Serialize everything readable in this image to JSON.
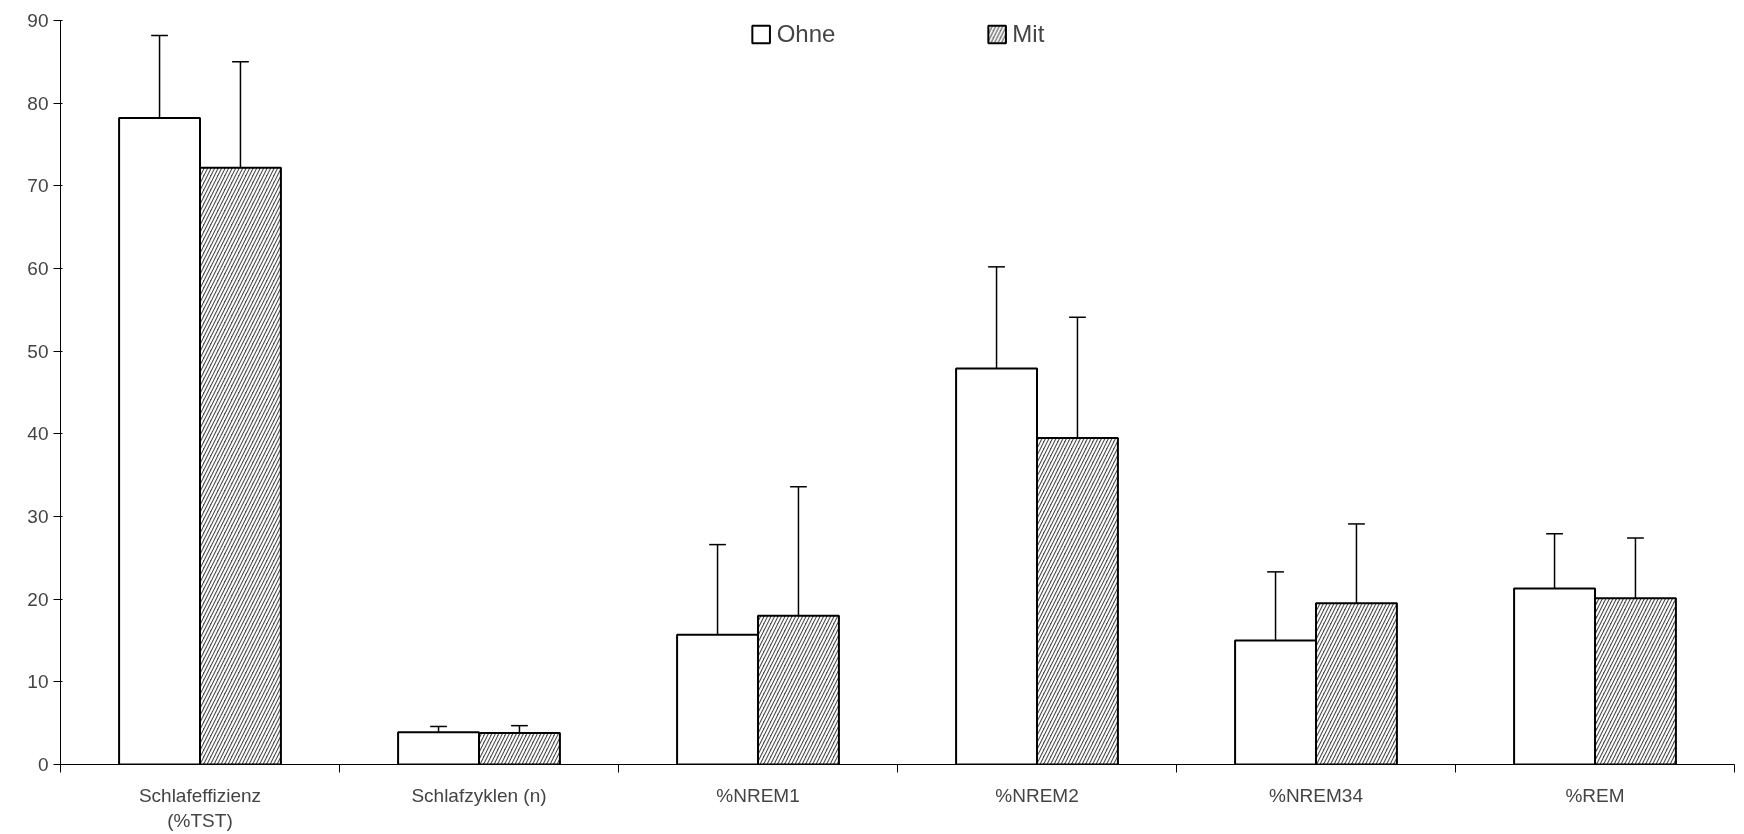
{
  "chart_data": {
    "type": "bar",
    "categories": [
      "Schlafeffizienz\n(%TST)",
      "Schlafzyklen (n)",
      "%NREM1",
      "%NREM2",
      "%NREM34",
      "%REM"
    ],
    "series": [
      {
        "name": "Ohne",
        "color": "#ffffff",
        "values": [
          78.2,
          3.9,
          15.7,
          47.9,
          15.0,
          21.3
        ],
        "errors": [
          [
            78.2,
            88.2
          ],
          [
            3.9,
            4.6
          ],
          [
            15.7,
            26.6
          ],
          [
            47.9,
            60.2
          ],
          [
            15.0,
            23.3
          ],
          [
            21.3,
            27.9
          ]
        ]
      },
      {
        "name": "Mit",
        "color": "#505050",
        "values": [
          72.2,
          3.8,
          18.0,
          39.5,
          19.5,
          20.1
        ],
        "errors": [
          [
            72.2,
            85.0
          ],
          [
            3.8,
            4.7
          ],
          [
            18.0,
            33.6
          ],
          [
            39.5,
            54.1
          ],
          [
            19.5,
            29.1
          ],
          [
            20.1,
            27.4
          ]
        ]
      }
    ],
    "ylim": [
      0,
      90
    ],
    "yticks": [
      0,
      10,
      20,
      30,
      40,
      50,
      60,
      70,
      80,
      90
    ],
    "grid": false,
    "legend": "top"
  }
}
